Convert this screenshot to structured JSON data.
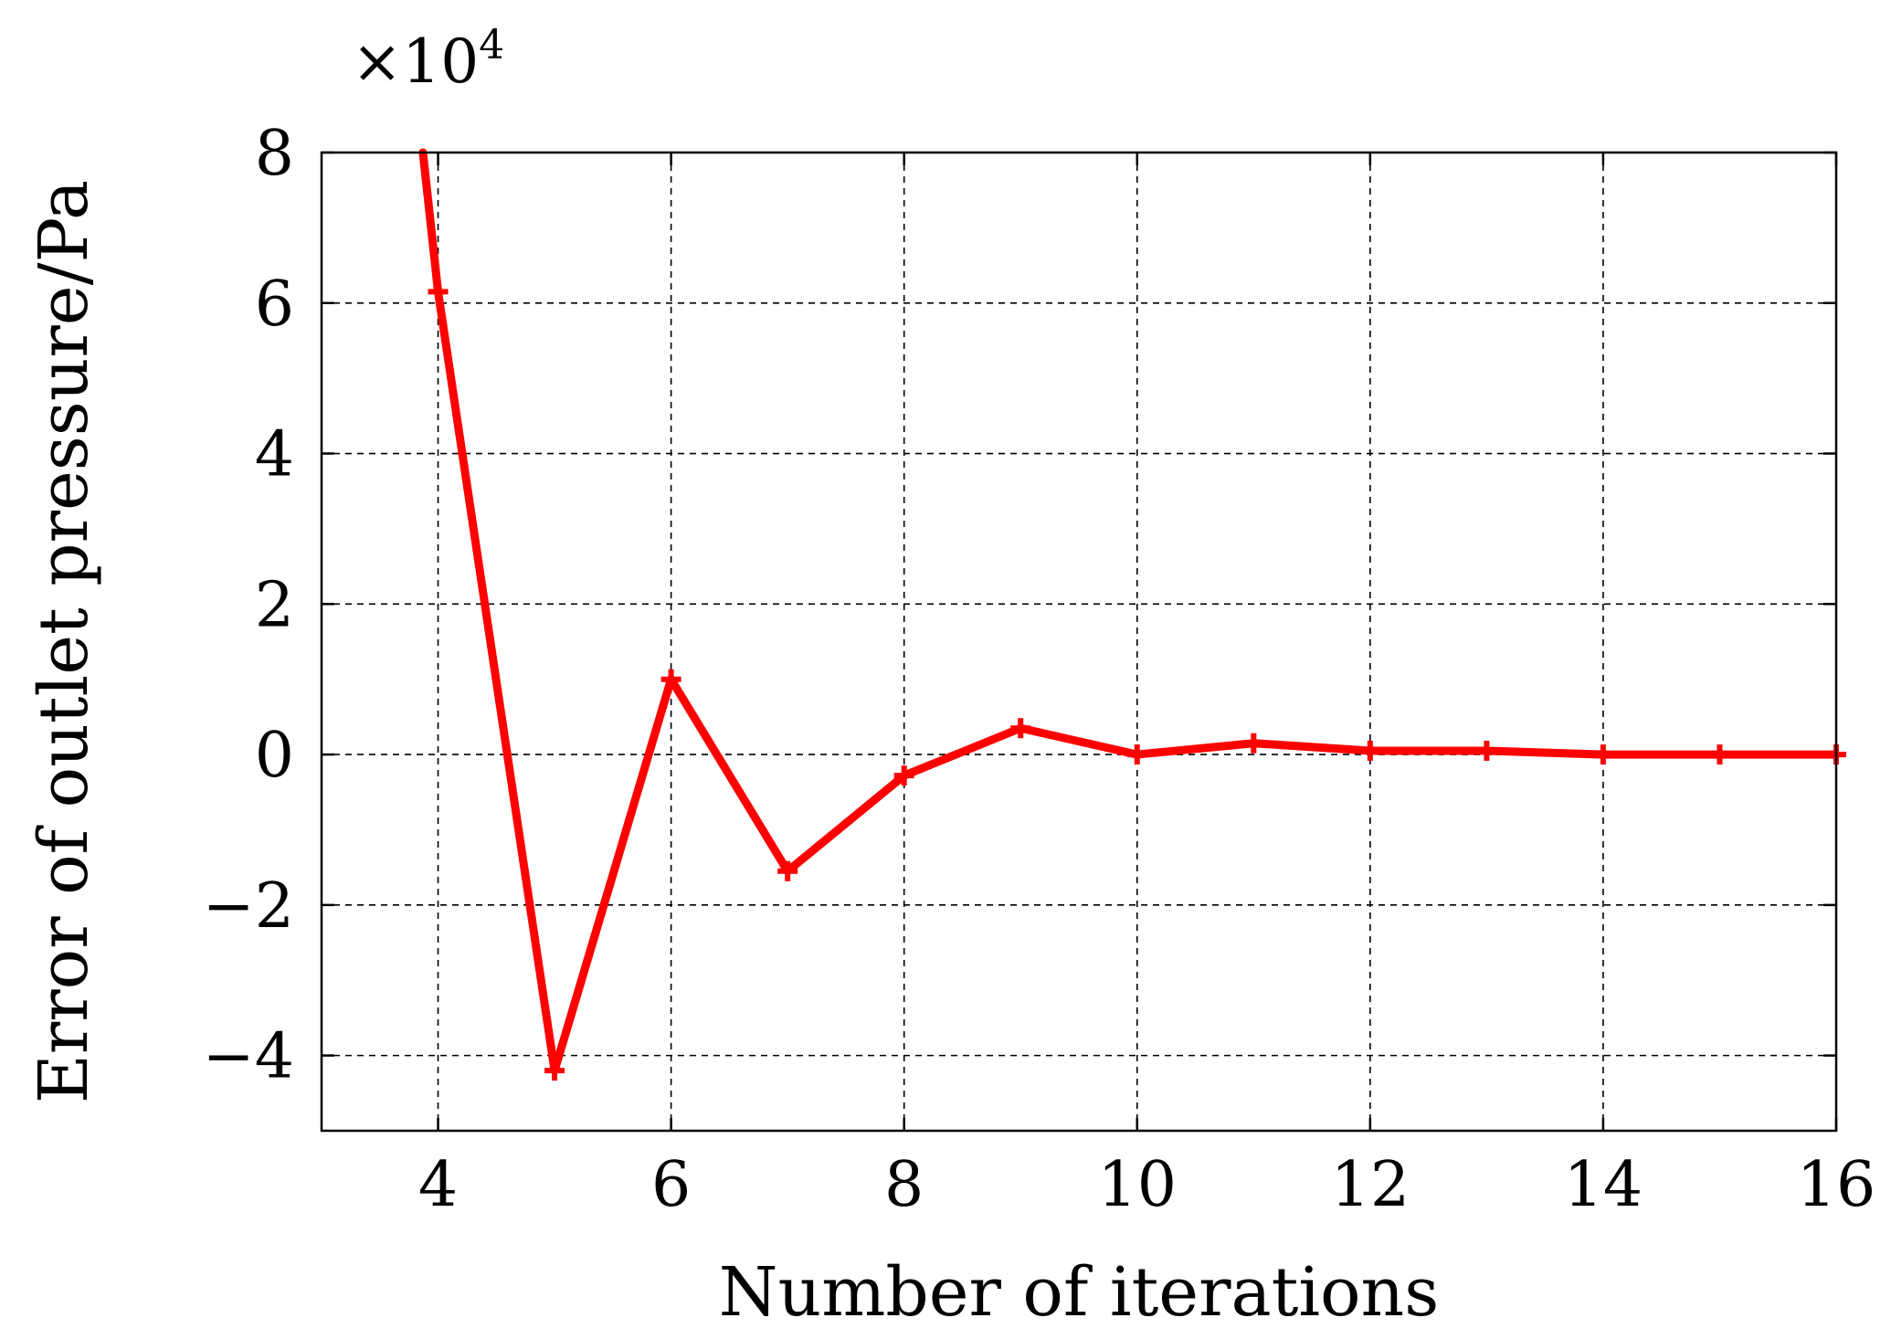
{
  "chart_data": {
    "type": "line",
    "xlabel": "Number of iterations",
    "ylabel": "Error of outlet pressure/Pa",
    "y_multiplier": {
      "base": "×10",
      "exponent": "4"
    },
    "xlim": [
      3,
      16
    ],
    "ylim": [
      -5,
      8
    ],
    "xticks": [
      4,
      6,
      8,
      10,
      12,
      14,
      16
    ],
    "yticks": [
      8,
      6,
      4,
      2,
      0,
      -2,
      -4
    ],
    "ytick_labels": [
      "8",
      "6",
      "4",
      "2",
      "0",
      "−2",
      "−4"
    ],
    "grid": true,
    "legend": "none",
    "series": [
      {
        "color": "#ff0000",
        "marker": "plus",
        "x": [
          3.87,
          4,
          5,
          6,
          7,
          8,
          9,
          10,
          11,
          12,
          13,
          14,
          15,
          16
        ],
        "y": [
          8.0,
          6.15,
          -4.2,
          1.0,
          -1.55,
          -0.28,
          0.35,
          0.0,
          0.15,
          0.05,
          0.05,
          0.0,
          0.0,
          0.0
        ]
      }
    ]
  }
}
